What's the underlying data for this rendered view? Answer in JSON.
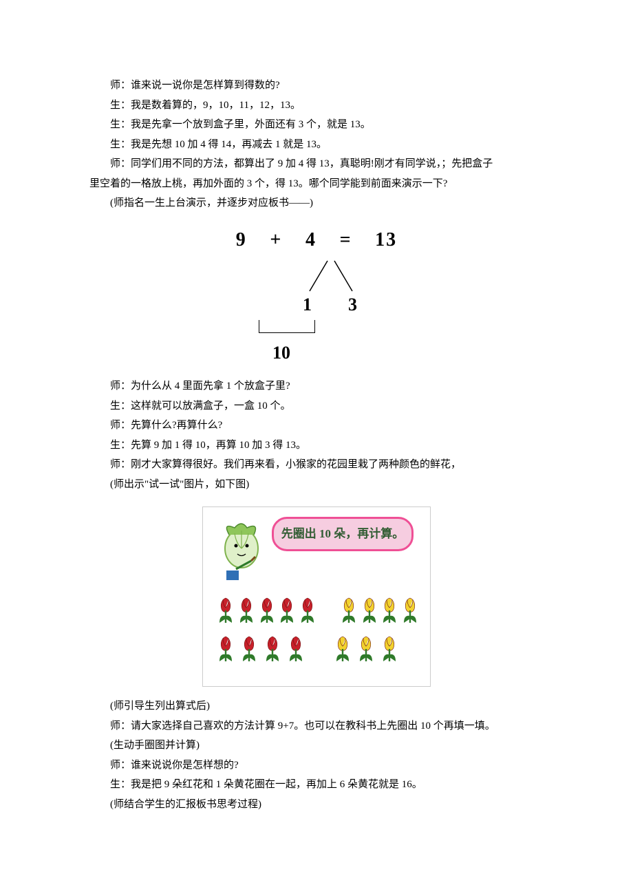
{
  "paragraphs": {
    "p1": "师：谁来说一说你是怎样算到得数的?",
    "p2": "生：我是数着算的，9，10，11，12，13。",
    "p3": "生：我是先拿一个放到盒子里，外面还有 3 个，就是 13。",
    "p4": "生：我是先想 10 加 4 得 14，再减去 1 就是 13。",
    "p5": "师：同学们用不同的方法，都算出了 9 加 4 得 13，真聪明!刚才有同学说，；先把盒子",
    "p5b": "里空着的一格放上桃，再加外面的 3 个，得 13。哪个同学能到前面来演示一下?",
    "p6": "(师指名一生上台演示，并逐步对应板书——)",
    "p7": "师：为什么从 4 里面先拿 1 个放盒子里?",
    "p8": "生：这样就可以放满盒子，一盒 10 个。",
    "p9": "师：先算什么?再算什么?",
    "p10": "生：先算 9 加 1 得 10，再算 10 加 3 得 13。",
    "p11": "师：刚才大家算得很好。我们再来看，小猴家的花园里栽了两种颜色的鲜花，",
    "p12": "(师出示\"试一试\"图片，如下图)",
    "p13": "(师引导生列出算式后)",
    "p14": "师：请大家选择自己喜欢的方法计算 9+7。也可以在教科书上先圈出 10 个再填一填。",
    "p15": "(生动手圈图并计算)",
    "p16": "师：谁来说说你是怎样想的?",
    "p17": "生：我是把 9 朵红花和 1 朵黄花圈在一起，再加上 6 朵黄花就是 16。",
    "p18": "(师结合学生的汇报板书思考过程)"
  },
  "equation": {
    "a": "9",
    "op1": "+",
    "b": "4",
    "op2": "=",
    "c": "13",
    "split_left": "1",
    "split_right": "3",
    "combine_result": "10"
  },
  "tryit": {
    "bubble_text": "先圈出 10 朵，再计算。",
    "row1_red": 5,
    "row1_yellow": 4,
    "row2_red": 4,
    "row2_yellow": 3,
    "red_petal": "#c8202a",
    "red_stem": "#2f7a2a",
    "yellow_petal": "#f2d22e",
    "yellow_stem": "#2f7a2a",
    "bubble_fill": "#f6cde0",
    "bubble_border": "#ef4f95",
    "bubble_text_color": "#305c32"
  },
  "style": {
    "page_bg": "#ffffff",
    "text_color": "#000000",
    "font_size_pt": 11,
    "eq_font_size_pt": 21
  }
}
